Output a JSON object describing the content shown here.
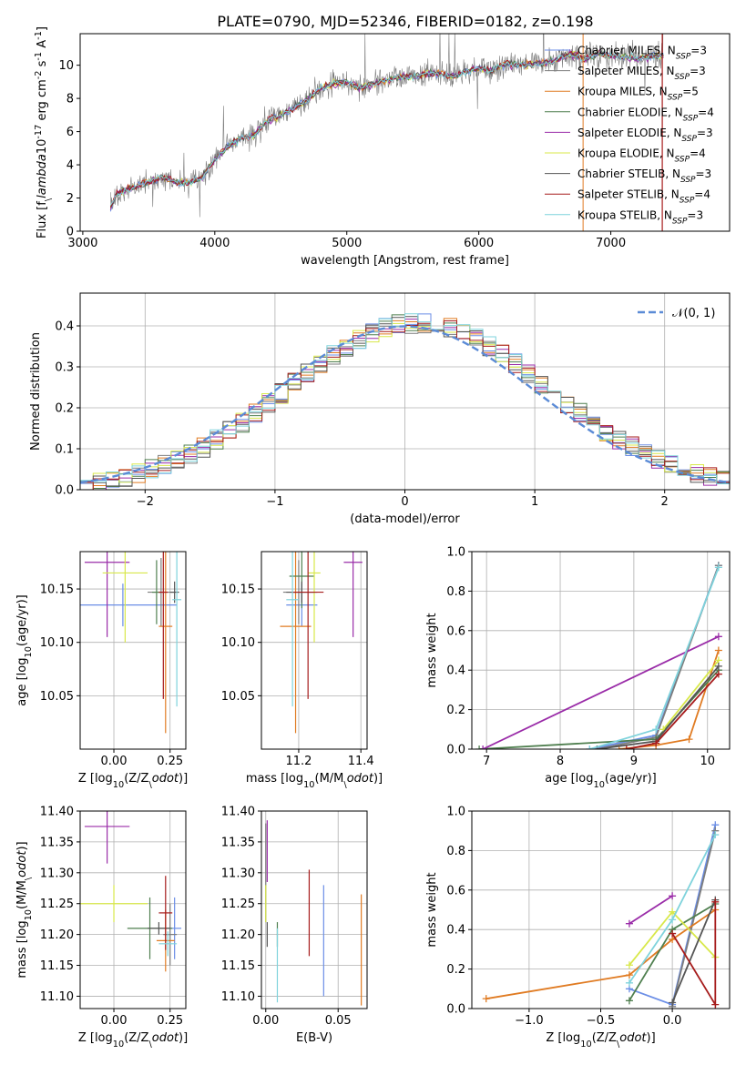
{
  "title": "PLATE=0790, MJD=52346, FIBERID=0182, z=0.198",
  "models": [
    {
      "name": "Chabrier MILES",
      "nssp": "3",
      "color": "#6b8ee6"
    },
    {
      "name": "Salpeter MILES",
      "nssp": "3",
      "color": "#7d7d7d"
    },
    {
      "name": "Kroupa MILES",
      "nssp": "5",
      "color": "#e07b22"
    },
    {
      "name": "Chabrier ELODIE",
      "nssp": "4",
      "color": "#4f7f4f"
    },
    {
      "name": "Salpeter ELODIE",
      "nssp": "3",
      "color": "#9a2ca8"
    },
    {
      "name": "Kroupa ELODIE",
      "nssp": "4",
      "color": "#d8e84a"
    },
    {
      "name": "Chabrier STELIB",
      "nssp": "3",
      "color": "#555555"
    },
    {
      "name": "Salpeter STELIB",
      "nssp": "4",
      "color": "#a61c1c"
    },
    {
      "name": "Kroupa STELIB",
      "nssp": "3",
      "color": "#7fd3dc"
    }
  ],
  "chart_data": [
    {
      "id": "spectrum",
      "type": "line",
      "xlabel": "wavelength [Angstrom, rest frame]",
      "ylabel": "Flux [f$_\\lambda$10$^{-17}$ erg cm$^{-2}$ s$^{-1}$ A$^{-1}$]",
      "xlim": [
        2980,
        7900
      ],
      "ylim": [
        0,
        11.9
      ],
      "xticks": [
        3000,
        4000,
        5000,
        6000,
        7000
      ],
      "yticks": [
        0,
        2,
        4,
        6,
        8,
        10
      ],
      "grid": false,
      "legend": "top-right",
      "series_x": [
        3210,
        3250,
        3300,
        3400,
        3500,
        3600,
        3700,
        3800,
        3900,
        4000,
        4100,
        4200,
        4300,
        4400,
        4500,
        4600,
        4700,
        4800,
        4900,
        5000,
        5100,
        5200,
        5300,
        5400,
        5500,
        5600,
        5700,
        5800,
        5900,
        6000,
        6100,
        6200,
        6300,
        6400,
        6500,
        6600,
        6700,
        6800,
        6900,
        7000,
        7100,
        7200,
        7300,
        7400
      ],
      "series_y": [
        1.4,
        2.2,
        2.4,
        2.7,
        3.0,
        3.2,
        3.0,
        2.9,
        3.2,
        4.3,
        5.1,
        5.6,
        5.8,
        6.7,
        7.0,
        7.4,
        7.9,
        8.6,
        8.9,
        9.0,
        8.6,
        8.9,
        9.1,
        9.3,
        9.3,
        9.5,
        9.5,
        9.3,
        9.6,
        9.8,
        9.7,
        10.1,
        10.0,
        10.1,
        10.1,
        10.4,
        10.7,
        10.4,
        10.7,
        10.6,
        10.5,
        10.4,
        10.5,
        10.6
      ]
    },
    {
      "id": "residual-histogram",
      "type": "bar",
      "xlabel": "(data-model)/error",
      "ylabel": "Normed distribution",
      "xlim": [
        -2.5,
        2.5
      ],
      "ylim": [
        0,
        0.48
      ],
      "xticks": [
        -2,
        -1,
        0,
        1,
        2
      ],
      "yticks": [
        0.0,
        0.1,
        0.2,
        0.3,
        0.4
      ],
      "grid": true,
      "legend": "top-right",
      "legend_label": "𝒩(0, 1)",
      "reference_curve": "normal(0,1)",
      "bin_width": 0.1
    },
    {
      "id": "age-vs-Z",
      "type": "scatter",
      "xlabel": "Z [log$_{10}$(Z/Z$_\\odot$)]",
      "ylabel": "age  [log$_{10}$(age/yr)]",
      "xlim": [
        -0.15,
        0.32
      ],
      "ylim": [
        10.0,
        10.185
      ],
      "xticks": [
        0.0,
        0.25
      ],
      "yticks": [
        10.05,
        10.1,
        10.15
      ],
      "grid": true,
      "points": [
        {
          "x": 0.04,
          "y": 10.135,
          "xerr": 0.24,
          "yerr": 0.02
        },
        {
          "x": 0.21,
          "y": 10.147,
          "xerr": 0.06,
          "yerr": 0.032
        },
        {
          "x": 0.23,
          "y": 10.115,
          "xerr": 0.03,
          "yerr": 0.1
        },
        {
          "x": 0.19,
          "y": 10.147,
          "xerr": 0.02,
          "yerr": 0.03
        },
        {
          "x": -0.03,
          "y": 10.175,
          "xerr": 0.1,
          "yerr": 0.07
        },
        {
          "x": 0.05,
          "y": 10.165,
          "xerr": 0.1,
          "yerr": 0.065
        },
        {
          "x": 0.27,
          "y": 10.147,
          "xerr": 0.02,
          "yerr": 0.01
        },
        {
          "x": 0.22,
          "y": 10.147,
          "xerr": 0.02,
          "yerr": 0.1
        },
        {
          "x": 0.28,
          "y": 10.14,
          "xerr": 0.02,
          "yerr": 0.1
        }
      ]
    },
    {
      "id": "age-vs-mass",
      "type": "scatter",
      "xlabel": "mass [log$_{10}$(M/M$_\\odot$)]",
      "ylabel": "",
      "xlim": [
        11.08,
        11.42
      ],
      "ylim": [
        10.0,
        10.185
      ],
      "xticks": [
        11.2,
        11.4
      ],
      "yticks": [
        10.05,
        10.1,
        10.15
      ],
      "grid": true,
      "points": [
        {
          "x": 11.21,
          "y": 10.135,
          "xerr": 0.05,
          "yerr": 0.02
        },
        {
          "x": 11.2,
          "y": 10.147,
          "xerr": 0.05,
          "yerr": 0.03
        },
        {
          "x": 11.19,
          "y": 10.115,
          "xerr": 0.05,
          "yerr": 0.1
        },
        {
          "x": 11.21,
          "y": 10.162,
          "xerr": 0.04,
          "yerr": 0.03
        },
        {
          "x": 11.375,
          "y": 10.175,
          "xerr": 0.03,
          "yerr": 0.07
        },
        {
          "x": 11.25,
          "y": 10.165,
          "xerr": 0.02,
          "yerr": 0.065
        },
        {
          "x": 11.21,
          "y": 10.147,
          "xerr": 0.05,
          "yerr": 0.01
        },
        {
          "x": 11.23,
          "y": 10.147,
          "xerr": 0.05,
          "yerr": 0.1
        },
        {
          "x": 11.18,
          "y": 10.14,
          "xerr": 0.02,
          "yerr": 0.1
        }
      ]
    },
    {
      "id": "massweight-vs-age",
      "type": "line",
      "xlabel": "age  [log$_{10}$(age/yr)]",
      "ylabel": "mass weight",
      "xlim": [
        6.8,
        10.3
      ],
      "ylim": [
        0,
        1.0
      ],
      "xticks": [
        7,
        8,
        9,
        10
      ],
      "yticks": [
        0.0,
        0.2,
        0.4,
        0.6,
        0.8,
        1.0
      ],
      "grid": true,
      "series": [
        {
          "x": [
            8.4,
            9.3,
            10.15
          ],
          "y": [
            0.0,
            0.07,
            0.93
          ]
        },
        {
          "x": [
            8.5,
            9.3,
            10.15
          ],
          "y": [
            0.0,
            0.06,
            0.93
          ]
        },
        {
          "x": [
            8.8,
            9.3,
            9.75,
            10.15
          ],
          "y": [
            0.0,
            0.02,
            0.05,
            0.5
          ]
        },
        {
          "x": [
            6.9,
            9.3,
            10.15
          ],
          "y": [
            0.0,
            0.05,
            0.4
          ]
        },
        {
          "x": [
            6.95,
            10.15
          ],
          "y": [
            0.0,
            0.57
          ]
        },
        {
          "x": [
            9.4,
            10.15
          ],
          "y": [
            0.1,
            0.45
          ]
        },
        {
          "x": [
            8.5,
            9.3,
            10.15
          ],
          "y": [
            0.0,
            0.04,
            0.42
          ]
        },
        {
          "x": [
            8.9,
            9.3,
            10.15
          ],
          "y": [
            0.0,
            0.03,
            0.38
          ]
        },
        {
          "x": [
            8.4,
            9.3,
            10.15
          ],
          "y": [
            0.0,
            0.1,
            0.92
          ]
        }
      ]
    },
    {
      "id": "mass-vs-Z",
      "type": "scatter",
      "xlabel": "Z [log$_{10}$(Z/Z$_\\odot$)]",
      "ylabel": "mass [log$_{10}$(M/M$_\\odot$)]",
      "xlim": [
        -0.15,
        0.32
      ],
      "ylim": [
        11.08,
        11.4
      ],
      "xticks": [
        0.0,
        0.25
      ],
      "yticks": [
        11.1,
        11.15,
        11.2,
        11.25,
        11.3,
        11.35,
        11.4
      ],
      "grid": true,
      "points": [
        {
          "x": 0.27,
          "y": 11.21,
          "xerr": 0.03,
          "yerr": 0.05
        },
        {
          "x": 0.25,
          "y": 11.2,
          "xerr": 0.03,
          "yerr": 0.05
        },
        {
          "x": 0.23,
          "y": 11.19,
          "xerr": 0.04,
          "yerr": 0.05
        },
        {
          "x": 0.16,
          "y": 11.21,
          "xerr": 0.1,
          "yerr": 0.05
        },
        {
          "x": -0.03,
          "y": 11.375,
          "xerr": 0.1,
          "yerr": 0.06
        },
        {
          "x": 0.0,
          "y": 11.25,
          "xerr": 0.15,
          "yerr": 0.03
        },
        {
          "x": 0.2,
          "y": 11.21,
          "xerr": 0.05,
          "yerr": 0.01
        },
        {
          "x": 0.23,
          "y": 11.235,
          "xerr": 0.03,
          "yerr": 0.06
        },
        {
          "x": 0.24,
          "y": 11.185,
          "xerr": 0.04,
          "yerr": 0.02
        }
      ]
    },
    {
      "id": "mass-vs-ebv",
      "type": "scatter",
      "xlabel": "E(B-V)",
      "ylabel": "",
      "xlim": [
        -0.003,
        0.07
      ],
      "ylim": [
        11.08,
        11.4
      ],
      "xticks": [
        0.0,
        0.05
      ],
      "yticks": [
        11.1,
        11.15,
        11.2,
        11.25,
        11.3,
        11.35,
        11.4
      ],
      "grid": true,
      "points": [
        {
          "x": 0.04,
          "y": 11.19,
          "xerr": 0,
          "yerr": 0.09
        },
        {
          "x": 0.0,
          "y": 11.3,
          "xerr": 0,
          "yerr": 0.08
        },
        {
          "x": 0.066,
          "y": 11.175,
          "xerr": 0,
          "yerr": 0.09
        },
        {
          "x": 0.008,
          "y": 11.2,
          "xerr": 0,
          "yerr": 0.02
        },
        {
          "x": 0.001,
          "y": 11.335,
          "xerr": 0,
          "yerr": 0.05
        },
        {
          "x": 0.0,
          "y": 11.25,
          "xerr": 0,
          "yerr": 0.03
        },
        {
          "x": 0.001,
          "y": 11.2,
          "xerr": 0,
          "yerr": 0.02
        },
        {
          "x": 0.03,
          "y": 11.235,
          "xerr": 0,
          "yerr": 0.07
        },
        {
          "x": 0.008,
          "y": 11.15,
          "xerr": 0,
          "yerr": 0.06
        }
      ]
    },
    {
      "id": "massweight-vs-Z",
      "type": "line",
      "xlabel": "Z [log$_{10}$(Z/Z$_\\odot$)]",
      "ylabel": "mass weight",
      "xlim": [
        -1.4,
        0.4
      ],
      "ylim": [
        0,
        1.0
      ],
      "xticks": [
        -1.0,
        -0.5,
        0.0
      ],
      "yticks": [
        0.0,
        0.2,
        0.4,
        0.6,
        0.8,
        1.0
      ],
      "grid": true,
      "series": [
        {
          "x": [
            -0.3,
            0.0,
            0.3
          ],
          "y": [
            0.1,
            0.02,
            0.93
          ]
        },
        {
          "x": [
            0.0,
            0.3
          ],
          "y": [
            0.01,
            0.9
          ]
        },
        {
          "x": [
            -1.3,
            -0.3,
            0.0,
            0.3
          ],
          "y": [
            0.05,
            0.17,
            0.35,
            0.5
          ]
        },
        {
          "x": [
            -0.3,
            0.0,
            0.3
          ],
          "y": [
            0.04,
            0.4,
            0.53
          ]
        },
        {
          "x": [
            -0.3,
            0.0
          ],
          "y": [
            0.43,
            0.57
          ]
        },
        {
          "x": [
            -0.3,
            0.0,
            0.3
          ],
          "y": [
            0.22,
            0.49,
            0.26
          ]
        },
        {
          "x": [
            0.0,
            0.3
          ],
          "y": [
            0.03,
            0.55
          ]
        },
        {
          "x": [
            0.0,
            0.3,
            0.3
          ],
          "y": [
            0.38,
            0.02,
            0.54
          ]
        },
        {
          "x": [
            -0.3,
            0.0,
            0.3
          ],
          "y": [
            0.13,
            0.45,
            0.88
          ]
        }
      ]
    }
  ]
}
